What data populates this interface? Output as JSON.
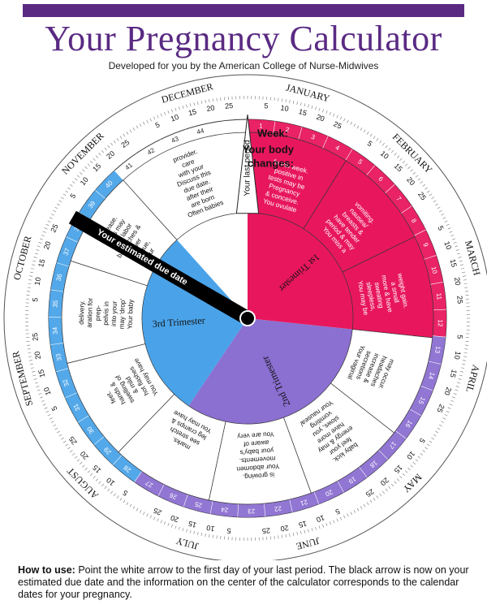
{
  "header": {
    "title": "Your Pregnancy Calculator",
    "subtitle": "Developed for you by the American College of Nurse-Midwives"
  },
  "wheel": {
    "week_label": "Week:",
    "body_changes_label": "Your body changes:",
    "last_period_label": "Your last period",
    "due_date_label": "Your estimated due date",
    "trimesters": [
      "1st Trimester",
      "2nd Trimester",
      "3rd Trimester"
    ],
    "trimester_colors": [
      "#e8175d",
      "#8b6fd1",
      "#4aa3e8"
    ],
    "ring_colors": [
      "#e8175d",
      "#8b6fd1",
      "#4aa3e8"
    ],
    "weeks": [
      1,
      2,
      3,
      4,
      5,
      6,
      7,
      8,
      9,
      10,
      11,
      12,
      13,
      14,
      15,
      16,
      17,
      18,
      19,
      20,
      21,
      22,
      23,
      24,
      25,
      26,
      27,
      28,
      29,
      30,
      31,
      32,
      33,
      34,
      35,
      36,
      37,
      38,
      39,
      40,
      41,
      42,
      43,
      44
    ],
    "months": [
      "JANUARY",
      "FEBRUARY",
      "MARCH",
      "APRIL",
      "MAY",
      "JUNE",
      "JULY",
      "AUGUST",
      "SEPTEMBER",
      "OCTOBER",
      "NOVEMBER",
      "DECEMBER"
    ],
    "date_ticks": [
      "5",
      "10",
      "15",
      "20",
      "25"
    ],
    "segments": [
      "You ovulate & conceive. Pregnancy tests may be positive in fourth week.",
      "You miss a period & may have tender breasts & nausea/ vomiting.",
      "You may be sleepless, sweating more & have a small weight gain.",
      "Your vaginal secretions increase & headaches may occur.",
      "Your nausea/ vomiting slows, you have more energy & may feel your baby kick.",
      "You are very aware of your baby's movements. Your abdomen is growing.",
      "You may have leg cramps & see stretch marks.",
      "You may have hot flashes & mild swelling of hands & feet.",
      "Your baby may 'drop' into your pelvis in prep- aration for delivery.",
      "Your fatigue, lower backaches & false labor pains may increase.",
      "Often babies are born after their due date. Discuss this with your care provider."
    ]
  },
  "footer": {
    "howto_label": "How to use:",
    "howto_text": "Point the white arrow to the first day of your last period. The black arrow is now on your estimated due date and the information on the center of the calculator corresponds to the calendar dates for your pregnancy."
  }
}
